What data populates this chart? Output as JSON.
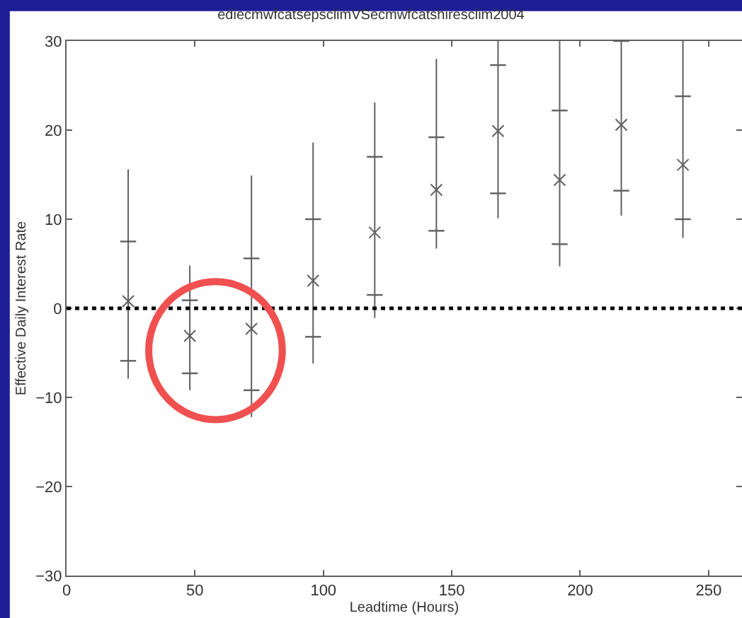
{
  "chart_data": {
    "type": "box",
    "title": "ediecmwfcatsepsclimVSecmwfcatshiresclim2004",
    "xlabel": "Leadtime (Hours)",
    "ylabel": "Effective Daily Interest Rate",
    "x": [
      24,
      48,
      72,
      96,
      120,
      144,
      168,
      192,
      216,
      240
    ],
    "series": [
      {
        "color": "#606060",
        "marker": "cross",
        "boxes": [
          {
            "low": -7.9,
            "q1": -5.9,
            "median": 0.8,
            "q3": 7.5,
            "high": 15.6
          },
          {
            "low": -9.2,
            "q1": -7.3,
            "median": -3.1,
            "q3": 0.9,
            "high": 4.8
          },
          {
            "low": -12.2,
            "q1": -9.2,
            "median": -2.3,
            "q3": 5.6,
            "high": 14.9
          },
          {
            "low": -6.2,
            "q1": -3.2,
            "median": 3.1,
            "q3": 10.0,
            "high": 18.6
          },
          {
            "low": -1.1,
            "q1": 1.5,
            "median": 8.5,
            "q3": 17.0,
            "high": 23.1
          },
          {
            "low": 6.7,
            "q1": 8.7,
            "median": 13.3,
            "q3": 19.2,
            "high": 28.0
          },
          {
            "low": 10.1,
            "q1": 12.9,
            "median": 19.9,
            "q3": 27.3,
            "high": 30
          },
          {
            "low": 4.7,
            "q1": 7.2,
            "median": 14.4,
            "q3": 22.2,
            "high": 30
          },
          {
            "low": 10.4,
            "q1": 13.2,
            "median": 20.6,
            "q3": 30,
            "high": 30
          },
          {
            "low": 7.9,
            "q1": 10.0,
            "median": 16.1,
            "q3": 23.8,
            "high": 30
          }
        ]
      }
    ],
    "xlim": [
      0,
      263
    ],
    "xticks": [
      0,
      50,
      100,
      150,
      200,
      250
    ],
    "ylim": [
      -30,
      30
    ],
    "yticks": [
      -30,
      -20,
      -10,
      0,
      10,
      20,
      30
    ],
    "ref_lines": [
      {
        "axis": "y",
        "value": 0,
        "color": "#000000",
        "line_style": "dotted"
      }
    ]
  }
}
